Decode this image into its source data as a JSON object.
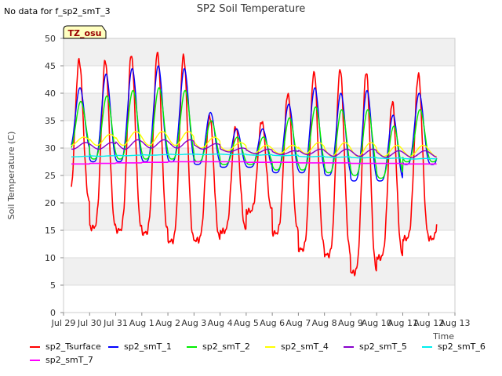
{
  "chart_data": {
    "type": "line",
    "title": "SP2 Soil Temperature",
    "no_data_note": "No data for f_sp2_smT_3",
    "tz_badge": "TZ_osu",
    "xlabel": "Time",
    "ylabel": "Soil Temperature (C)",
    "xlim": [
      0,
      15
    ],
    "ylim": [
      0,
      50
    ],
    "x_ticks": [
      {
        "x": 0,
        "label": "Jul 29"
      },
      {
        "x": 1,
        "label": "Jul 30"
      },
      {
        "x": 2,
        "label": "Jul 31"
      },
      {
        "x": 3,
        "label": "Aug 1"
      },
      {
        "x": 4,
        "label": "Aug 2"
      },
      {
        "x": 5,
        "label": "Aug 3"
      },
      {
        "x": 6,
        "label": "Aug 4"
      },
      {
        "x": 7,
        "label": "Aug 5"
      },
      {
        "x": 8,
        "label": "Aug 6"
      },
      {
        "x": 9,
        "label": "Aug 7"
      },
      {
        "x": 10,
        "label": "Aug 8"
      },
      {
        "x": 11,
        "label": "Aug 9"
      },
      {
        "x": 12,
        "label": "Aug 10"
      },
      {
        "x": 13,
        "label": "Aug 11"
      },
      {
        "x": 14,
        "label": "Aug 12"
      },
      {
        "x": 15,
        "label": "Aug 13"
      }
    ],
    "y_ticks": [
      0,
      5,
      10,
      15,
      20,
      25,
      30,
      35,
      40,
      45,
      50
    ],
    "x_start": 0.3,
    "x_end": 14.3,
    "daily": {
      "sp2_Tsurface": {
        "max": [
          46,
          46,
          47,
          47.5,
          47,
          36,
          34,
          35,
          40,
          44,
          44.5,
          44,
          38.5,
          43.5
        ],
        "min": [
          20,
          15.5,
          15,
          14.5,
          13,
          13.2,
          14.8,
          18.5,
          14.5,
          11.5,
          10.5,
          7.3,
          10,
          13.5
        ]
      },
      "sp2_smT_1": {
        "max": [
          41,
          43.5,
          44.5,
          45,
          44.5,
          36.5,
          33.5,
          33.5,
          38,
          41,
          40,
          40.5,
          36,
          40
        ],
        "min": [
          29.5,
          27.5,
          27.5,
          27.5,
          27.5,
          27,
          26.5,
          26.5,
          25.5,
          25.5,
          25,
          24,
          24,
          27
        ]
      },
      "sp2_smT_2": {
        "max": [
          38.5,
          39.5,
          40.5,
          41,
          40.5,
          35,
          32,
          32,
          35.5,
          37.5,
          37,
          37,
          34,
          37
        ],
        "min": [
          29.5,
          28,
          28,
          28,
          28,
          27.5,
          27,
          27,
          26,
          26,
          25.5,
          25,
          24.5,
          27.5
        ]
      },
      "sp2_smT_4": {
        "max": [
          32,
          32.5,
          33,
          33,
          33,
          32,
          31,
          30.5,
          30.5,
          31,
          31,
          31,
          30.5,
          30.5
        ],
        "min": [
          30.5,
          30.5,
          30.5,
          30.5,
          30.5,
          30,
          29.5,
          29,
          29,
          29,
          28.5,
          28.5,
          28.5,
          28.5
        ]
      },
      "sp2_smT_5": {
        "max": [
          31,
          31,
          31.5,
          31.5,
          31.5,
          30.8,
          30,
          29.8,
          29.5,
          29.8,
          29.8,
          29.8,
          29.5,
          29.5
        ],
        "min": [
          29.8,
          29.8,
          29.8,
          30,
          30,
          29.8,
          29.3,
          29,
          28.8,
          28.8,
          28.5,
          28.5,
          28.3,
          28.3
        ]
      },
      "sp2_smT_6": {
        "max": [
          28.5,
          28.6,
          28.7,
          28.8,
          28.9,
          28.9,
          28.9,
          28.8,
          28.7,
          28.5,
          28.4,
          28.3,
          28.2,
          28.1
        ],
        "min": [
          28.4,
          28.5,
          28.6,
          28.7,
          28.8,
          28.8,
          28.8,
          28.7,
          28.6,
          28.4,
          28.3,
          28.2,
          28.1,
          28.0
        ]
      },
      "sp2_smT_7": {
        "max": [
          27.1,
          27.2,
          27.3,
          27.4,
          27.5,
          27.5,
          27.5,
          27.4,
          27.4,
          27.3,
          27.3,
          27.2,
          27.2,
          27.1
        ],
        "min": [
          27.1,
          27.2,
          27.3,
          27.4,
          27.5,
          27.5,
          27.5,
          27.4,
          27.4,
          27.3,
          27.3,
          27.2,
          27.2,
          27.1
        ]
      }
    },
    "series": [
      {
        "name": "sp2_Tsurface",
        "color": "#ff0000",
        "width": 1.6,
        "phase": 0.6,
        "sharp": 2.2
      },
      {
        "name": "sp2_smT_1",
        "color": "#0000ff",
        "width": 1.4,
        "phase": 0.63,
        "sharp": 1.8
      },
      {
        "name": "sp2_smT_2",
        "color": "#00ee00",
        "width": 1.4,
        "phase": 0.66,
        "sharp": 1.6
      },
      {
        "name": "sp2_smT_4",
        "color": "#ffff00",
        "width": 1.4,
        "phase": 0.78,
        "sharp": 1.0
      },
      {
        "name": "sp2_smT_5",
        "color": "#8800cc",
        "width": 1.4,
        "phase": 0.85,
        "sharp": 1.0
      },
      {
        "name": "sp2_smT_6",
        "color": "#00eeee",
        "width": 1.4,
        "phase": 0.9,
        "sharp": 1.0
      },
      {
        "name": "sp2_smT_7",
        "color": "#ff00ff",
        "width": 1.6,
        "phase": 0.9,
        "sharp": 1.0
      }
    ]
  }
}
